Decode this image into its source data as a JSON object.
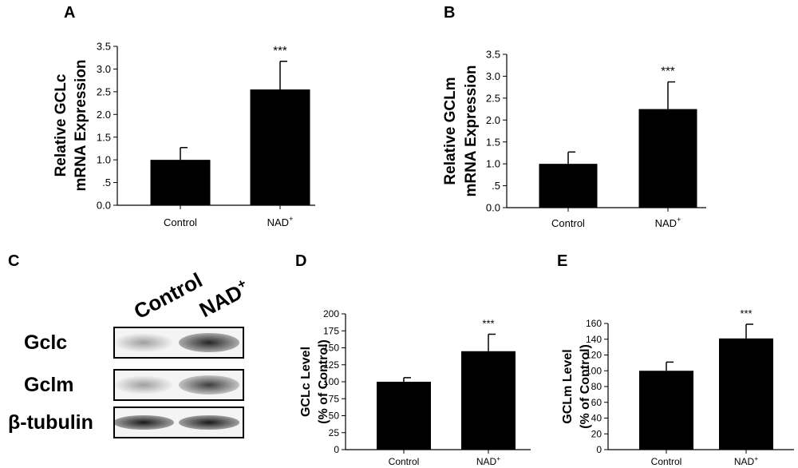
{
  "chart_data": [
    {
      "panel": "A",
      "type": "bar",
      "categories": [
        "Control",
        "NAD+"
      ],
      "values": [
        1.0,
        2.55
      ],
      "errors": [
        0.27,
        0.62
      ],
      "significance": [
        "",
        "***"
      ],
      "ylabel_lines": [
        "Relative GCLc",
        "mRNA Expression"
      ],
      "ylim": [
        0,
        3.5
      ],
      "yticks": [
        0,
        0.5,
        1.0,
        1.5,
        2.0,
        2.5,
        3.0,
        3.5
      ],
      "ytick_labels": [
        "0.0",
        ".5",
        "1.0",
        "1.5",
        "2.0",
        "2.5",
        "3.0",
        "3.5"
      ]
    },
    {
      "panel": "B",
      "type": "bar",
      "categories": [
        "Control",
        "NAD+"
      ],
      "values": [
        1.0,
        2.25
      ],
      "errors": [
        0.27,
        0.62
      ],
      "significance": [
        "",
        "***"
      ],
      "ylabel_lines": [
        "Relative GCLm",
        "mRNA Expression"
      ],
      "ylim": [
        0,
        3.5
      ],
      "yticks": [
        0,
        0.5,
        1.0,
        1.5,
        2.0,
        2.5,
        3.0,
        3.5
      ],
      "ytick_labels": [
        "0.0",
        ".5",
        "1.0",
        "1.5",
        "2.0",
        "2.5",
        "3.0",
        "3.5"
      ]
    },
    {
      "panel": "D",
      "type": "bar",
      "categories": [
        "Control",
        "NAD+"
      ],
      "values": [
        100,
        145
      ],
      "errors": [
        6,
        25
      ],
      "significance": [
        "",
        "***"
      ],
      "ylabel_lines": [
        "GCLc Level",
        "(% of Control)"
      ],
      "ylim": [
        0,
        200
      ],
      "yticks": [
        0,
        25,
        50,
        75,
        100,
        125,
        150,
        175,
        200
      ],
      "ytick_labels": [
        "0",
        "25",
        "50",
        "75",
        "100",
        "125",
        "150",
        "175",
        "200"
      ]
    },
    {
      "panel": "E",
      "type": "bar",
      "categories": [
        "Control",
        "NAD+"
      ],
      "values": [
        100,
        141
      ],
      "errors": [
        11,
        18
      ],
      "significance": [
        "",
        "***"
      ],
      "ylabel_lines": [
        "GCLm Level",
        "(% of Control)"
      ],
      "ylim": [
        0,
        160
      ],
      "yticks": [
        0,
        20,
        40,
        60,
        80,
        100,
        120,
        140,
        160
      ],
      "ytick_labels": [
        "0",
        "20",
        "40",
        "60",
        "80",
        "100",
        "120",
        "140",
        "160"
      ]
    }
  ],
  "blot": {
    "panel": "C",
    "lanes": [
      "Control",
      "NAD+"
    ],
    "rows": [
      {
        "label": "Gclc",
        "intensity": [
          0.35,
          0.85
        ]
      },
      {
        "label": "Gclm",
        "intensity": [
          0.35,
          0.75
        ]
      },
      {
        "label": "β-tubulin",
        "intensity": [
          0.9,
          0.9
        ]
      }
    ]
  },
  "colors": {
    "bar": "#000000",
    "axis": "#000000",
    "background": "#ffffff"
  }
}
